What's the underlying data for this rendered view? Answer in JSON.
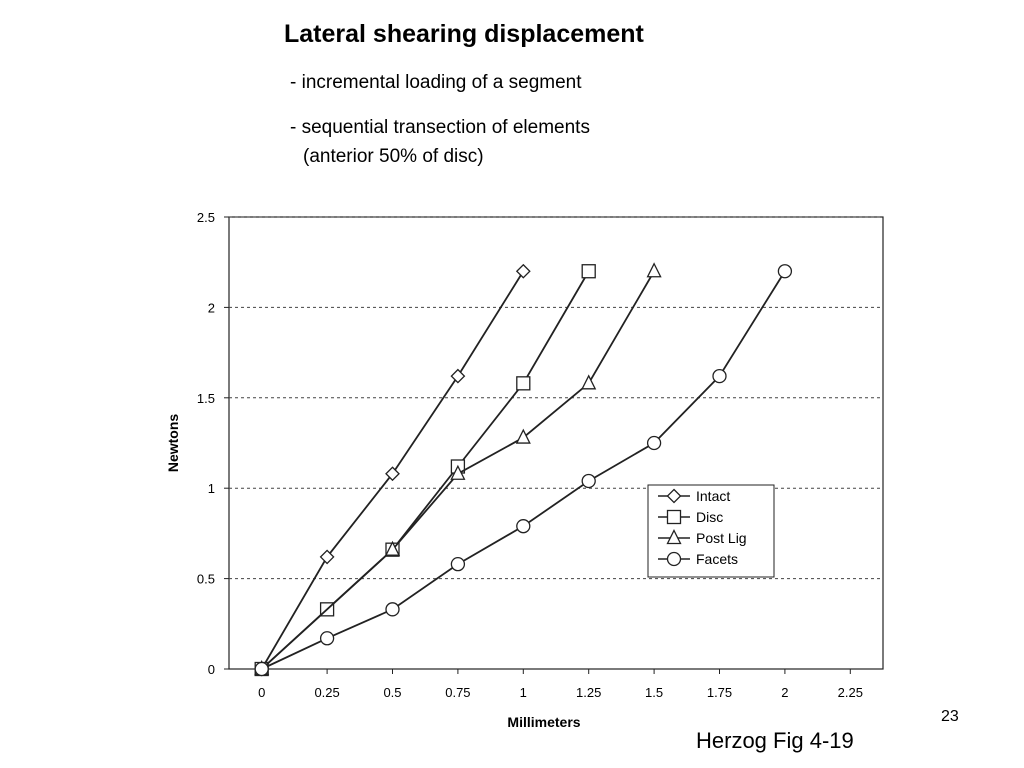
{
  "slide": {
    "title": "Lateral shearing displacement",
    "bullets": [
      "- incremental loading of a segment",
      "- sequential transection of elements"
    ],
    "bullet_sub": "(anterior 50% of disc)",
    "page_number": "23",
    "credit": "Herzog Fig  4-19"
  },
  "chart_data": {
    "type": "line",
    "xlabel": "Millimeters",
    "ylabel": "Newtons",
    "xlim": [
      -0.125,
      2.375
    ],
    "ylim": [
      0,
      2.5
    ],
    "x_ticks": [
      "0",
      "0.25",
      "0.5",
      "0.75",
      "1",
      "1.25",
      "1.5",
      "1.75",
      "2",
      "2.25"
    ],
    "x_tick_values": [
      0,
      0.25,
      0.5,
      0.75,
      1,
      1.25,
      1.5,
      1.75,
      2,
      2.25
    ],
    "y_ticks": [
      "0",
      "0.5",
      "1",
      "1.5",
      "2",
      "2.5"
    ],
    "y_tick_values": [
      0,
      0.5,
      1,
      1.5,
      2,
      2.5
    ],
    "grid": "horizontal dashed",
    "legend_position": "lower-right",
    "series": [
      {
        "name": "Intact",
        "marker": "diamond",
        "x": [
          0,
          0.25,
          0.5,
          0.75,
          1.0
        ],
        "y": [
          0,
          0.62,
          1.08,
          1.62,
          2.2
        ]
      },
      {
        "name": "Disc",
        "marker": "square",
        "x": [
          0,
          0.25,
          0.5,
          0.75,
          1.0,
          1.25
        ],
        "y": [
          0,
          0.33,
          0.66,
          1.12,
          1.58,
          2.2
        ]
      },
      {
        "name": "Post Lig",
        "marker": "triangle",
        "x": [
          0,
          0.5,
          0.75,
          1.0,
          1.25,
          1.5
        ],
        "y": [
          0,
          0.66,
          1.08,
          1.28,
          1.58,
          2.2
        ]
      },
      {
        "name": "Facets",
        "marker": "circle",
        "x": [
          0,
          0.25,
          0.5,
          0.75,
          1.0,
          1.25,
          1.5,
          1.75,
          2.0
        ],
        "y": [
          0,
          0.17,
          0.33,
          0.58,
          0.79,
          1.04,
          1.25,
          1.62,
          2.2
        ]
      }
    ]
  }
}
